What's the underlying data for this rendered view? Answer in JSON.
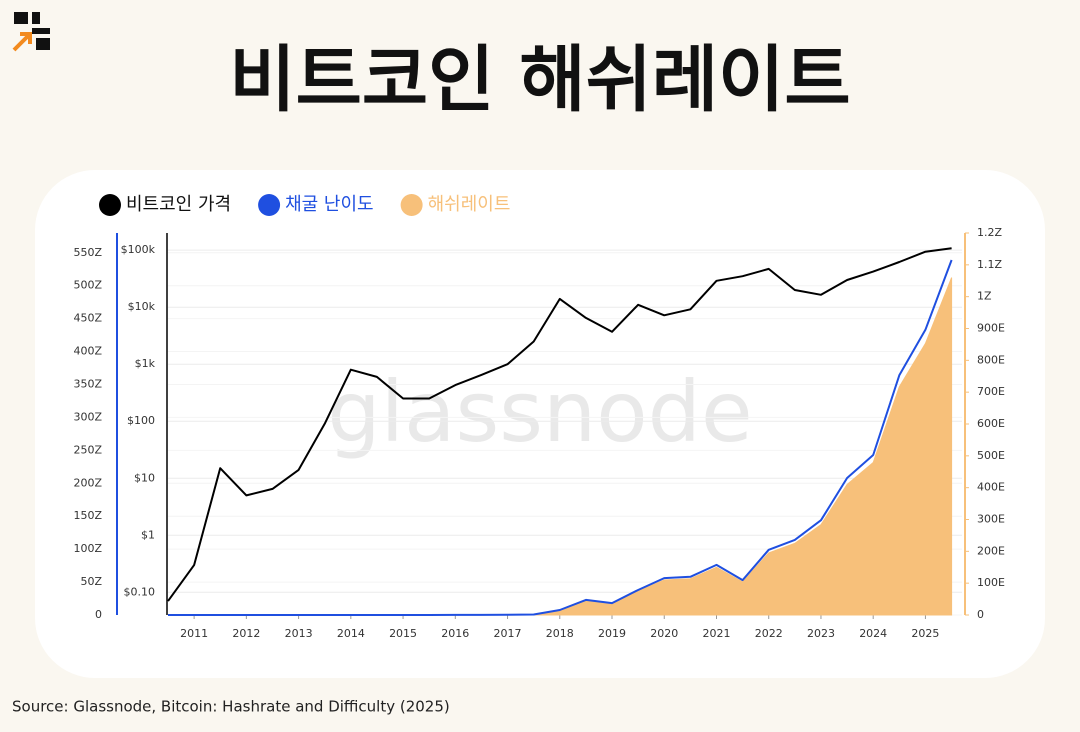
{
  "chart_data": {
    "type": "line",
    "title": "비트코인 해쉬레이트",
    "source": "Source: Glassnode, Bitcoin: Hashrate and Difficulty (2025)",
    "watermark": "glassnode",
    "x": [
      2010.5,
      2011.0,
      2011.5,
      2012.0,
      2012.5,
      2013.0,
      2013.5,
      2014.0,
      2014.5,
      2015.0,
      2015.5,
      2016.0,
      2016.5,
      2017.0,
      2017.5,
      2018.0,
      2018.5,
      2019.0,
      2019.5,
      2020.0,
      2020.5,
      2021.0,
      2021.5,
      2022.0,
      2022.5,
      2023.0,
      2023.5,
      2024.0,
      2024.5,
      2025.0,
      2025.5
    ],
    "xlim": [
      2010.5,
      2025.7
    ],
    "xticks": [
      2011,
      2012,
      2013,
      2014,
      2015,
      2016,
      2017,
      2018,
      2019,
      2020,
      2021,
      2022,
      2023,
      2024,
      2025
    ],
    "ylim": [
      0,
      580
    ],
    "yticks": [
      0,
      {
        "value": 50,
        "label": "50Z"
      },
      {
        "value": 100,
        "label": "100Z"
      },
      {
        "value": 150,
        "label": "150Z"
      },
      {
        "value": 200,
        "label": "200Z"
      },
      {
        "value": 250,
        "label": "250Z"
      },
      {
        "value": 300,
        "label": "300Z"
      },
      {
        "value": 350,
        "label": "350Z"
      },
      {
        "value": 400,
        "label": "400Z"
      },
      {
        "value": 450,
        "label": "450Z"
      },
      {
        "value": 500,
        "label": "500Z"
      },
      {
        "value": 550,
        "label": "550Z"
      }
    ],
    "y2lim": [
      0,
      1200
    ],
    "y2ticks": [
      0,
      {
        "value": 100,
        "label": "100E"
      },
      {
        "value": 200,
        "label": "200E"
      },
      {
        "value": 300,
        "label": "300E"
      },
      {
        "value": 400,
        "label": "400E"
      },
      {
        "value": 500,
        "label": "500E"
      },
      {
        "value": 600,
        "label": "600E"
      },
      {
        "value": 700,
        "label": "700E"
      },
      {
        "value": 800,
        "label": "800E"
      },
      {
        "value": 900,
        "label": "900E"
      },
      {
        "value": 1000,
        "label": "1Z"
      },
      {
        "value": 1100,
        "label": "1.1Z"
      },
      {
        "value": 1200,
        "label": "1.2Z"
      }
    ],
    "y3lim": [
      0.04,
      200000
    ],
    "y3log": true,
    "y3ticks": [
      {
        "value": 0.1,
        "label": "$0.10"
      },
      {
        "value": 1,
        "label": "$1"
      },
      {
        "value": 10,
        "label": "$10"
      },
      {
        "value": 100,
        "label": "$100"
      },
      {
        "value": 1000,
        "label": "$1k"
      },
      {
        "value": 10000,
        "label": "$10k"
      },
      {
        "value": 100000,
        "label": "$100k"
      }
    ],
    "grid": true,
    "legend": "top-left",
    "series": [
      {
        "name": "비트코인 가격",
        "color": "#000000",
        "axis": "y3",
        "values": [
          0.07,
          0.3,
          15,
          5,
          6.5,
          14,
          90,
          800,
          600,
          250,
          250,
          430,
          650,
          1000,
          2500,
          14000,
          6500,
          3700,
          11000,
          7200,
          9200,
          29000,
          35000,
          47000,
          20000,
          16500,
          30000,
          42000,
          62000,
          94000,
          108000
        ]
      },
      {
        "name": "채굴 난이도",
        "color": "#1f4fe0",
        "axis": "y",
        "values": [
          0,
          0,
          0,
          0,
          0,
          0,
          0,
          0,
          0.02,
          0.04,
          0.05,
          0.1,
          0.2,
          0.4,
          0.8,
          7.6,
          23,
          18,
          38,
          56,
          58,
          76,
          53,
          99,
          114,
          144,
          208,
          243,
          364,
          433,
          539
        ]
      },
      {
        "name": "해쉬레이트",
        "color": "#f7c07a",
        "axis": "y2",
        "style": "area",
        "values": [
          0,
          0,
          0,
          0,
          0,
          0,
          0,
          0,
          0.04,
          0.08,
          0.1,
          0.2,
          0.4,
          0.8,
          1.6,
          15,
          45,
          35,
          75,
          110,
          114,
          150,
          104,
          195,
          225,
          284,
          410,
          479,
          717,
          853,
          1060
        ]
      }
    ]
  }
}
